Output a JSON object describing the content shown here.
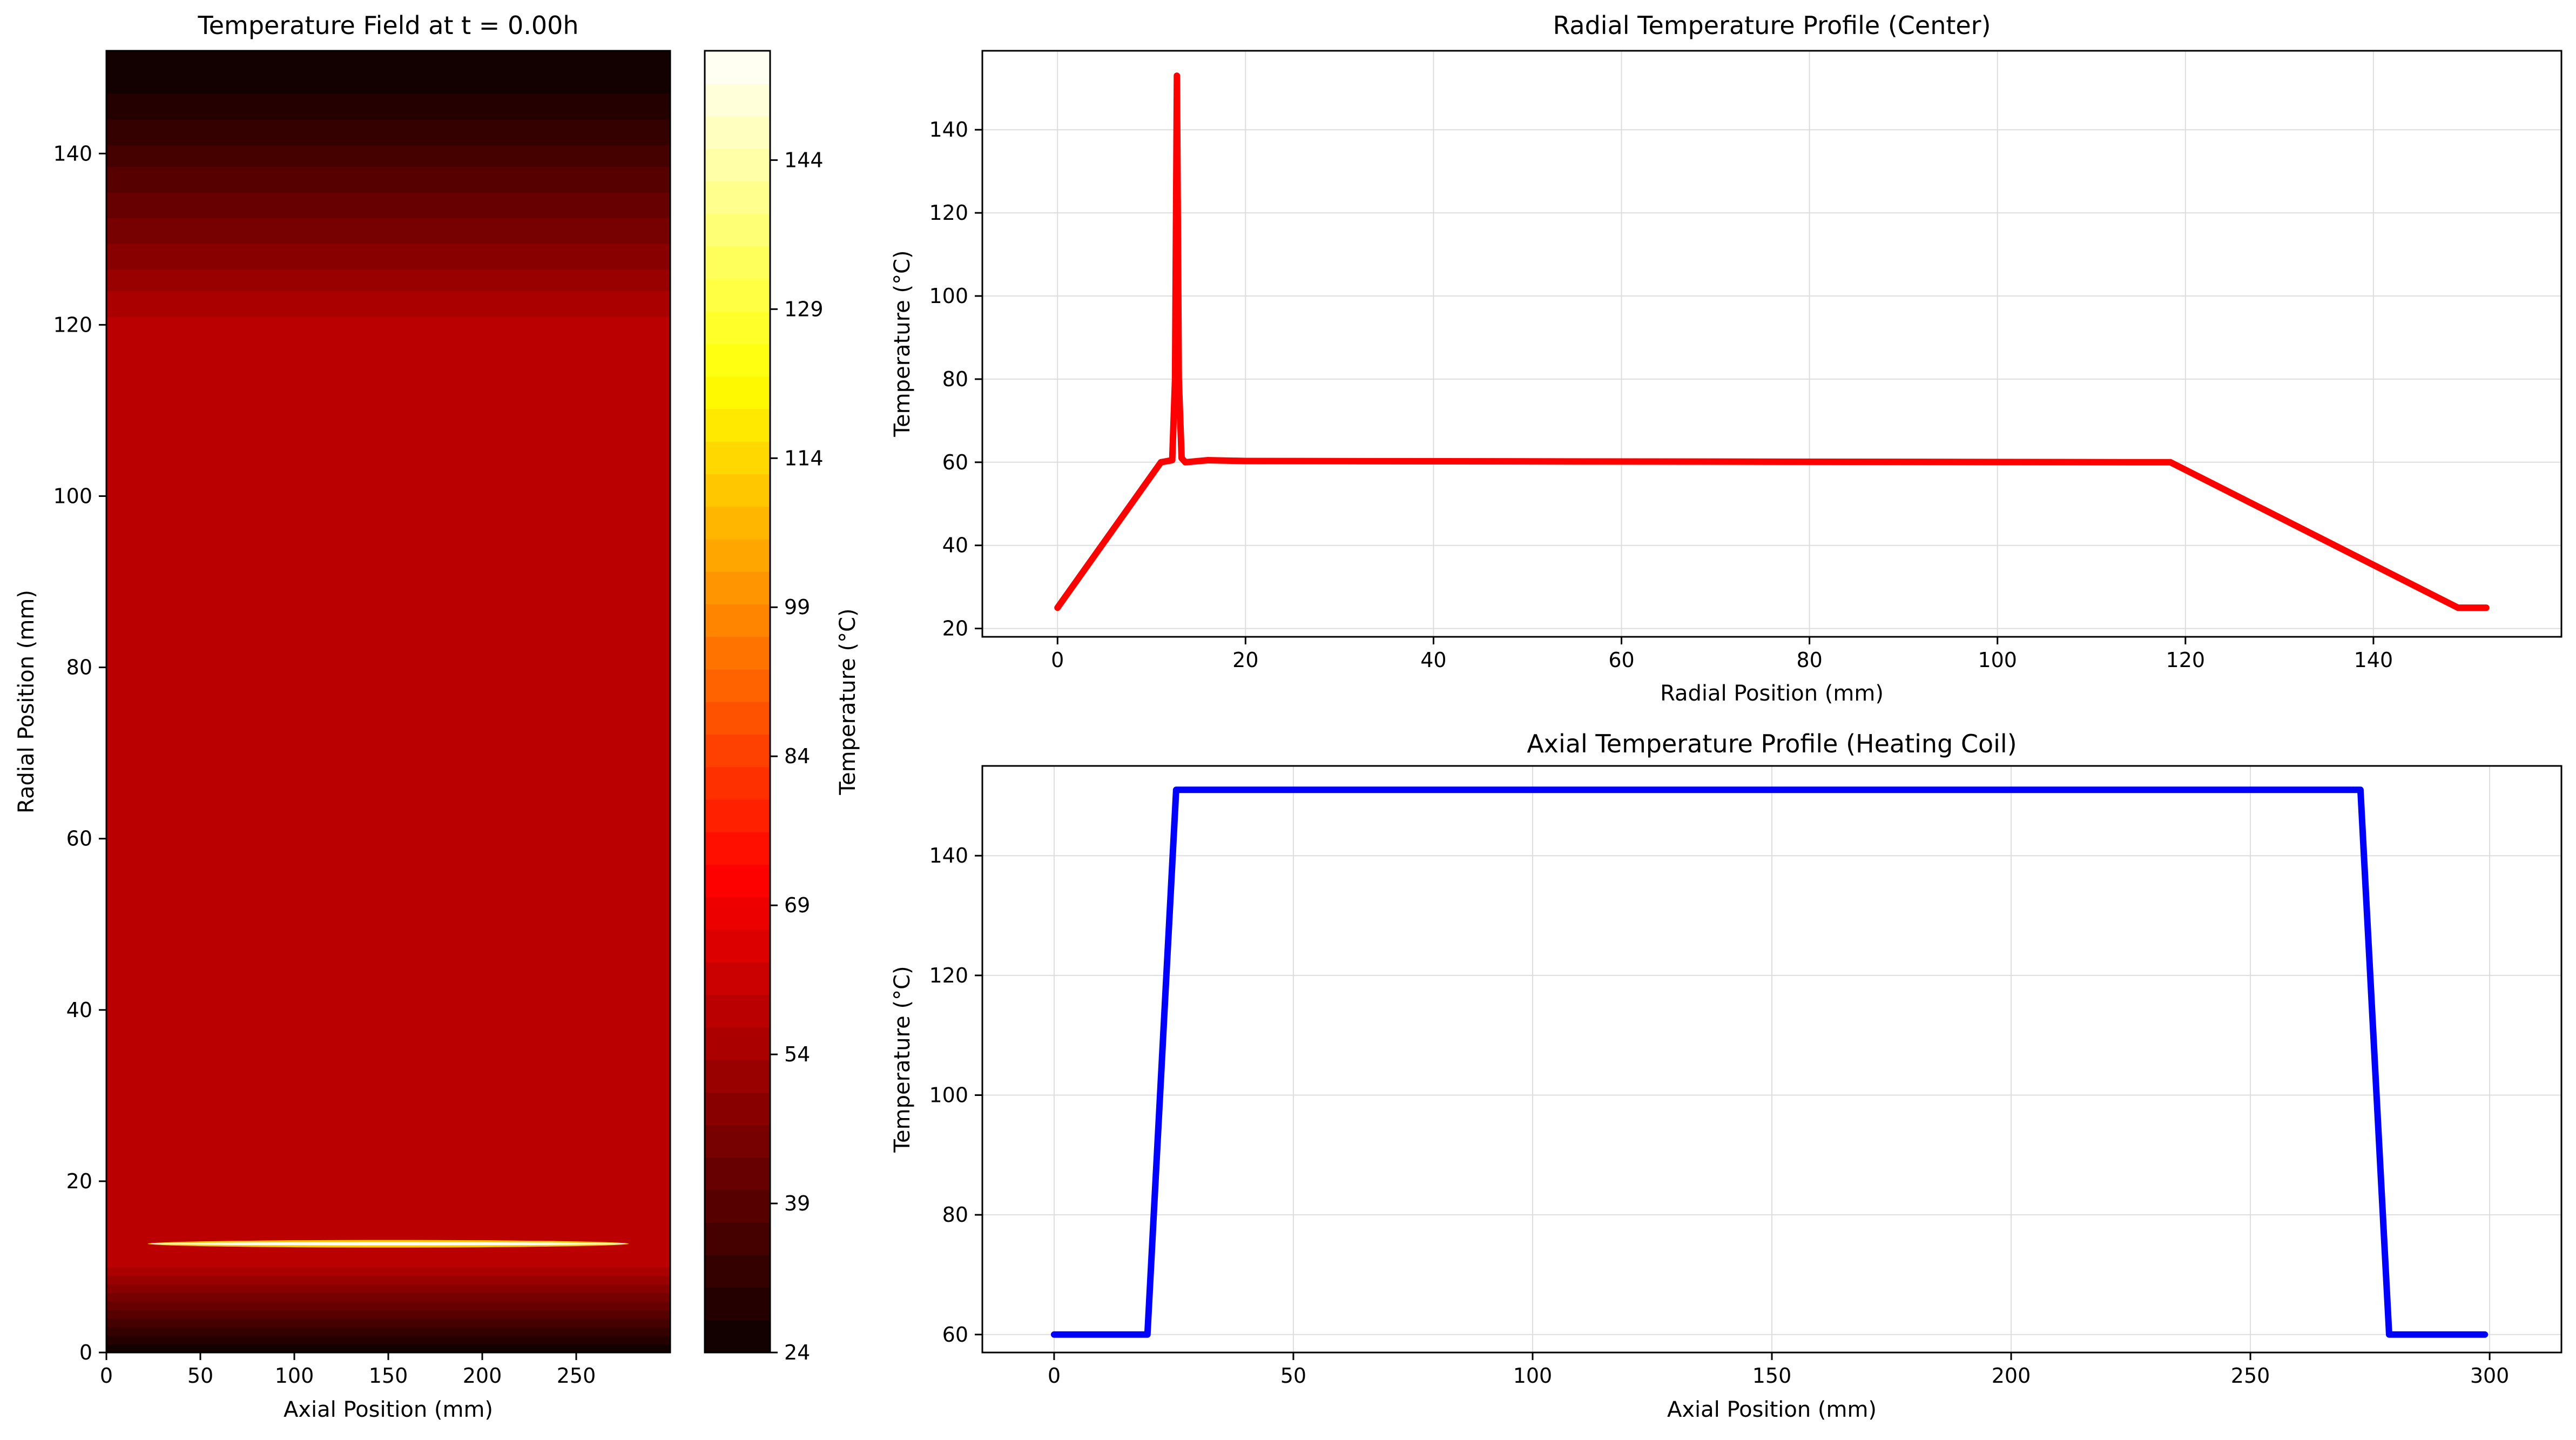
{
  "colors": {
    "radial_line": "#ff0000",
    "axial_line": "#0000ff",
    "grid": "#dddddd",
    "colormap": "hot"
  },
  "chart_data": [
    {
      "type": "heatmap",
      "title": "Temperature Field at t = 0.00h",
      "xlabel": "Axial Position (mm)",
      "ylabel": "Radial Position (mm)",
      "xlim": [
        0,
        300
      ],
      "ylim": [
        0,
        152
      ],
      "xticks": [
        0,
        50,
        100,
        150,
        200,
        250
      ],
      "yticks": [
        0,
        20,
        40,
        60,
        80,
        100,
        120,
        140
      ],
      "colorbar": {
        "label": "Temperature (°C)",
        "range": [
          24,
          155
        ],
        "ticks": [
          24,
          39,
          54,
          69,
          84,
          99,
          114,
          129,
          144
        ],
        "levels": 40
      },
      "field_description_points": {
        "radial_profile_r": [
          0,
          11,
          12.5,
          13.5,
          118,
          149,
          152
        ],
        "radial_profile_T": [
          24,
          60,
          60,
          60,
          60,
          25,
          25
        ]
      },
      "heating_coil": {
        "radial_position": 12.7,
        "axial_range": [
          22,
          278
        ],
        "temperature": 152
      },
      "grid": false
    },
    {
      "type": "line",
      "title": "Radial Temperature Profile (Center)",
      "xlabel": "Radial Position (mm)",
      "ylabel": "Temperature (°C)",
      "xlim": [
        -8,
        160
      ],
      "ylim": [
        18,
        159
      ],
      "xticks": [
        0,
        20,
        40,
        60,
        80,
        100,
        120,
        140
      ],
      "yticks": [
        20,
        40,
        60,
        80,
        100,
        120,
        140
      ],
      "grid": true,
      "series": [
        {
          "x": [
            0,
            11,
            12.2,
            12.5,
            12.7,
            12.9,
            13.2,
            13.6,
            16,
            20,
            118.4,
            149,
            152
          ],
          "y": [
            25,
            60,
            60.5,
            80,
            153,
            80,
            61,
            60,
            60.5,
            60.3,
            60,
            25,
            25
          ]
        }
      ]
    },
    {
      "type": "line",
      "title": "Axial Temperature Profile (Heating Coil)",
      "xlabel": "Axial Position (mm)",
      "ylabel": "Temperature (°C)",
      "xlim": [
        -15,
        315
      ],
      "ylim": [
        57,
        155
      ],
      "xticks": [
        0,
        50,
        100,
        150,
        200,
        250,
        300
      ],
      "yticks": [
        60,
        80,
        100,
        120,
        140
      ],
      "grid": true,
      "series": [
        {
          "x": [
            0,
            19.5,
            25.5,
            273,
            279,
            299
          ],
          "y": [
            60,
            60,
            151,
            151,
            60,
            60
          ]
        }
      ]
    }
  ]
}
